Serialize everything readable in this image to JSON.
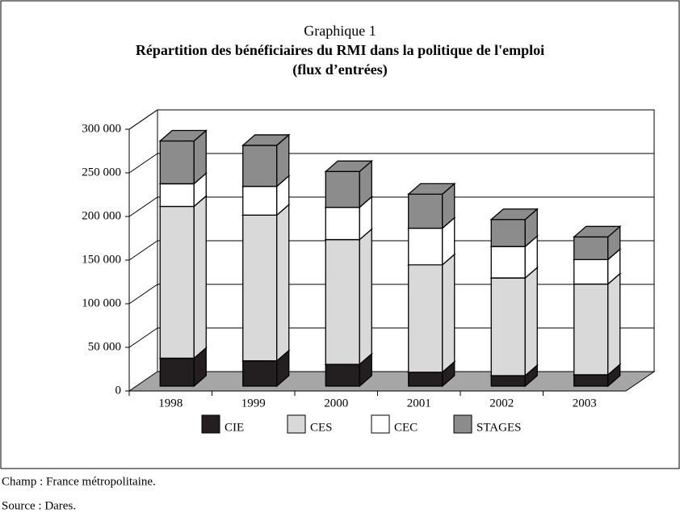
{
  "chart_data": {
    "type": "bar3d_stacked",
    "label": "Graphique 1",
    "title": "Répartition des bénéficiaires du RMI dans la politique de l'emploi",
    "subtitle": "(flux d’entrées)",
    "categories": [
      "1998",
      "1999",
      "2000",
      "2001",
      "2002",
      "2003"
    ],
    "series": [
      {
        "name": "CIE",
        "color": "#231f20",
        "values": [
          32000,
          29000,
          25000,
          16000,
          12000,
          13000
        ]
      },
      {
        "name": "CES",
        "color": "#d9d9d9",
        "values": [
          174000,
          167000,
          143000,
          123000,
          112000,
          104000
        ]
      },
      {
        "name": "CEC",
        "color": "#ffffff",
        "values": [
          26000,
          33000,
          37000,
          42000,
          36000,
          28000
        ]
      },
      {
        "name": "STAGES",
        "color": "#8c8c8c",
        "values": [
          49000,
          47000,
          41000,
          39000,
          31000,
          26000
        ]
      }
    ],
    "ylim": [
      0,
      300000
    ],
    "yticks": [
      0,
      {
        "value": 50000,
        "label": "50 000"
      },
      {
        "value": 100000,
        "label": "100 000"
      },
      {
        "value": 150000,
        "label": "150 000"
      },
      {
        "value": 200000,
        "label": "200 000"
      },
      {
        "value": 250000,
        "label": "250 000"
      },
      {
        "value": 300000,
        "label": "300 000"
      }
    ],
    "grid": true,
    "legend": "bottom",
    "notes": [
      "Champ : France métropolitaine.",
      "Source : Dares."
    ]
  }
}
